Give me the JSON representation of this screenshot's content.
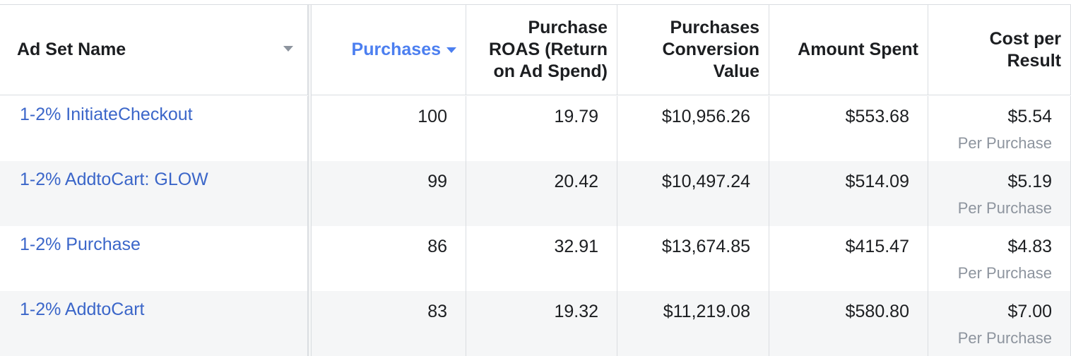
{
  "columns": [
    {
      "label": "Ad Set Name"
    },
    {
      "label": "Purchases"
    },
    {
      "label": "Purchase ROAS (Return on Ad Spend)"
    },
    {
      "label": "Purchases Conversion Value"
    },
    {
      "label": "Amount Spent"
    },
    {
      "label": "Cost per Result"
    }
  ],
  "rows": [
    {
      "name": "1-2% InitiateCheckout",
      "purchases": "100",
      "roas": "19.79",
      "conversion_value": "$10,956.26",
      "amount_spent": "$553.68",
      "cost_per_result": "$5.54",
      "cost_label": "Per Purchase"
    },
    {
      "name": "1-2% AddtoCart: GLOW",
      "purchases": "99",
      "roas": "20.42",
      "conversion_value": "$10,497.24",
      "amount_spent": "$514.09",
      "cost_per_result": "$5.19",
      "cost_label": "Per Purchase"
    },
    {
      "name": "1-2% Purchase",
      "purchases": "86",
      "roas": "32.91",
      "conversion_value": "$13,674.85",
      "amount_spent": "$415.47",
      "cost_per_result": "$4.83",
      "cost_label": "Per Purchase"
    },
    {
      "name": "1-2% AddtoCart",
      "purchases": "83",
      "roas": "19.32",
      "conversion_value": "$11,219.08",
      "amount_spent": "$580.80",
      "cost_per_result": "$7.00",
      "cost_label": "Per Purchase"
    }
  ],
  "colors": {
    "link": "#3b66c9",
    "sorted_header": "#4c7ff0",
    "muted": "#8d949e",
    "alt_row": "#f5f6f7"
  }
}
